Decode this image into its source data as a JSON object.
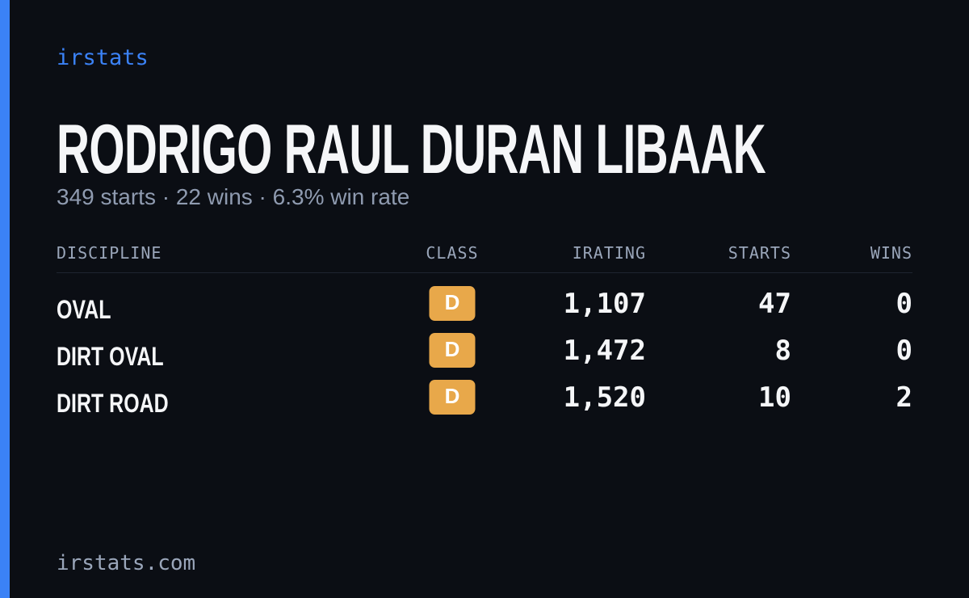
{
  "brand": "irstats",
  "driver": {
    "name": "RODRIGO RAUL DURAN LIBAAK",
    "summary": "349 starts · 22 wins · 6.3% win rate"
  },
  "table": {
    "headers": [
      "DISCIPLINE",
      "CLASS",
      "IRATING",
      "STARTS",
      "WINS"
    ],
    "rows": [
      [
        "OVAL",
        "D",
        "1,107",
        47,
        0
      ],
      [
        "DIRT OVAL",
        "D",
        "1,472",
        8,
        0
      ],
      [
        "DIRT ROAD",
        "D",
        "1,520",
        10,
        2
      ]
    ]
  },
  "footer": "irstats.com"
}
